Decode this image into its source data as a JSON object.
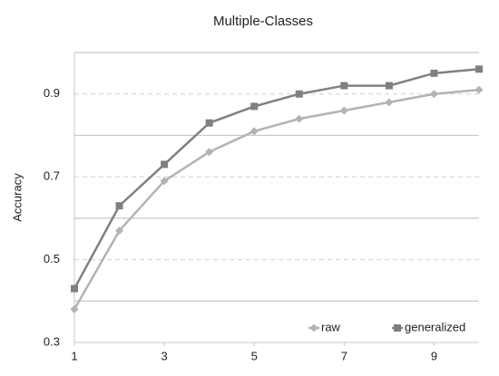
{
  "chart_data": {
    "type": "line",
    "title": "Multiple-Classes",
    "y_label": "Accuracy",
    "x": [
      1,
      2,
      3,
      4,
      5,
      6,
      7,
      8,
      9,
      10
    ],
    "series": [
      {
        "name": "raw",
        "color": "#b3b3b3",
        "marker": "diamond",
        "values": [
          0.38,
          0.57,
          0.69,
          0.76,
          0.81,
          0.84,
          0.86,
          0.88,
          0.9,
          0.91
        ]
      },
      {
        "name": "generalized",
        "color": "#808080",
        "marker": "square",
        "values": [
          0.43,
          0.63,
          0.73,
          0.83,
          0.87,
          0.9,
          0.92,
          0.92,
          0.95,
          0.96
        ]
      }
    ],
    "xlim": [
      1,
      10
    ],
    "xticks": [
      1,
      3,
      5,
      7,
      9
    ],
    "ylim": [
      0.3,
      1.0
    ],
    "yticks": [
      0.3,
      0.5,
      0.7,
      0.9
    ],
    "y_gridlines": [
      0.4,
      0.6,
      0.8,
      1.0
    ],
    "grid": true,
    "legend": "bottom-right"
  }
}
